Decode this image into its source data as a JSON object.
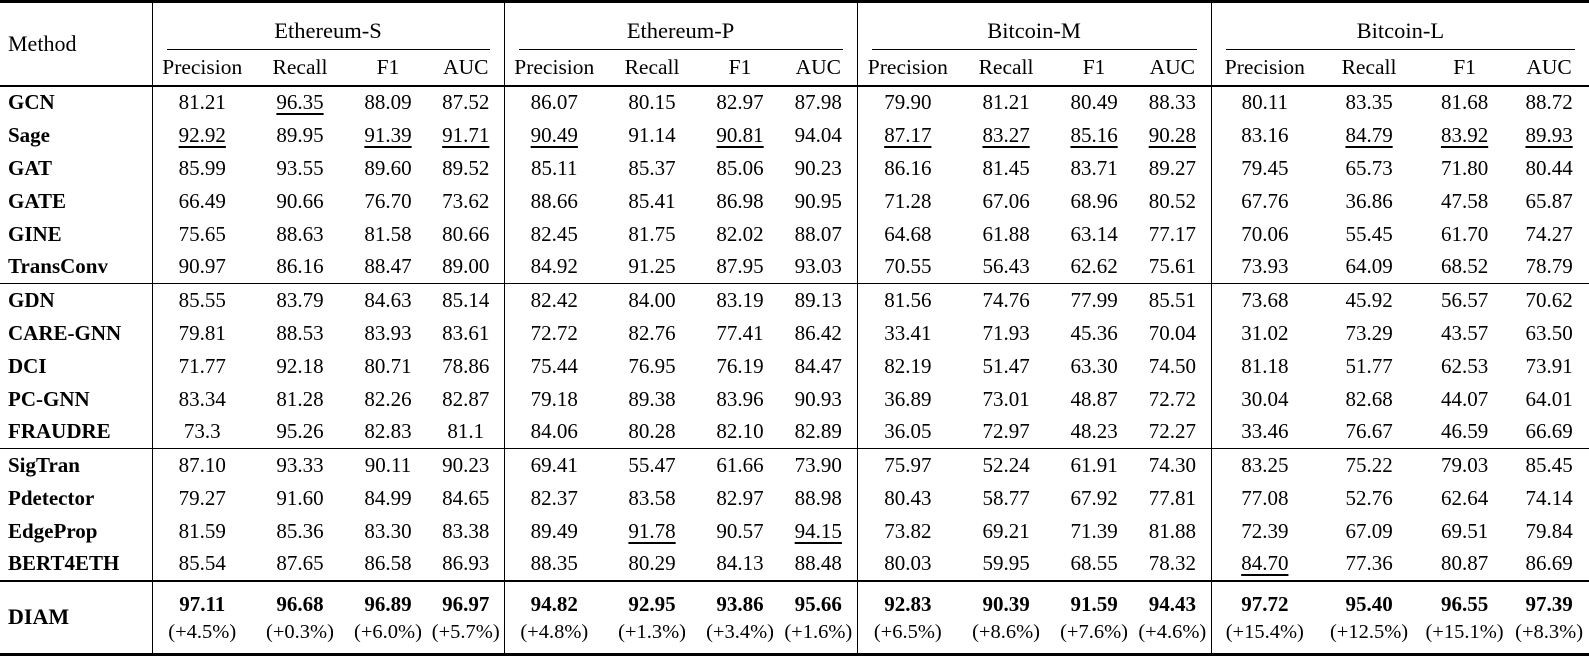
{
  "table": {
    "method_header": "Method",
    "datasets": [
      "Ethereum-S",
      "Ethereum-P",
      "Bitcoin-M",
      "Bitcoin-L"
    ],
    "metrics": [
      "Precision",
      "Recall",
      "F1",
      "AUC"
    ],
    "groups": [
      {
        "rows": [
          {
            "method": "GCN",
            "values": [
              "81.21",
              "96.35",
              "88.09",
              "87.52",
              "86.07",
              "80.15",
              "82.97",
              "87.98",
              "79.90",
              "81.21",
              "80.49",
              "88.33",
              "80.11",
              "83.35",
              "81.68",
              "88.72"
            ],
            "underline": [
              1
            ]
          },
          {
            "method": "Sage",
            "values": [
              "92.92",
              "89.95",
              "91.39",
              "91.71",
              "90.49",
              "91.14",
              "90.81",
              "94.04",
              "87.17",
              "83.27",
              "85.16",
              "90.28",
              "83.16",
              "84.79",
              "83.92",
              "89.93"
            ],
            "underline": [
              0,
              2,
              3,
              4,
              6,
              8,
              9,
              10,
              11,
              13,
              14,
              15
            ]
          },
          {
            "method": "GAT",
            "values": [
              "85.99",
              "93.55",
              "89.60",
              "89.52",
              "85.11",
              "85.37",
              "85.06",
              "90.23",
              "86.16",
              "81.45",
              "83.71",
              "89.27",
              "79.45",
              "65.73",
              "71.80",
              "80.44"
            ],
            "underline": []
          },
          {
            "method": "GATE",
            "values": [
              "66.49",
              "90.66",
              "76.70",
              "73.62",
              "88.66",
              "85.41",
              "86.98",
              "90.95",
              "71.28",
              "67.06",
              "68.96",
              "80.52",
              "67.76",
              "36.86",
              "47.58",
              "65.87"
            ],
            "underline": []
          },
          {
            "method": "GINE",
            "values": [
              "75.65",
              "88.63",
              "81.58",
              "80.66",
              "82.45",
              "81.75",
              "82.02",
              "88.07",
              "64.68",
              "61.88",
              "63.14",
              "77.17",
              "70.06",
              "55.45",
              "61.70",
              "74.27"
            ],
            "underline": []
          },
          {
            "method": "TransConv",
            "values": [
              "90.97",
              "86.16",
              "88.47",
              "89.00",
              "84.92",
              "91.25",
              "87.95",
              "93.03",
              "70.55",
              "56.43",
              "62.62",
              "75.61",
              "73.93",
              "64.09",
              "68.52",
              "78.79"
            ],
            "underline": []
          }
        ]
      },
      {
        "rows": [
          {
            "method": "GDN",
            "values": [
              "85.55",
              "83.79",
              "84.63",
              "85.14",
              "82.42",
              "84.00",
              "83.19",
              "89.13",
              "81.56",
              "74.76",
              "77.99",
              "85.51",
              "73.68",
              "45.92",
              "56.57",
              "70.62"
            ],
            "underline": []
          },
          {
            "method": "CARE-GNN",
            "values": [
              "79.81",
              "88.53",
              "83.93",
              "83.61",
              "72.72",
              "82.76",
              "77.41",
              "86.42",
              "33.41",
              "71.93",
              "45.36",
              "70.04",
              "31.02",
              "73.29",
              "43.57",
              "63.50"
            ],
            "underline": []
          },
          {
            "method": "DCI",
            "values": [
              "71.77",
              "92.18",
              "80.71",
              "78.86",
              "75.44",
              "76.95",
              "76.19",
              "84.47",
              "82.19",
              "51.47",
              "63.30",
              "74.50",
              "81.18",
              "51.77",
              "62.53",
              "73.91"
            ],
            "underline": []
          },
          {
            "method": "PC-GNN",
            "values": [
              "83.34",
              "81.28",
              "82.26",
              "82.87",
              "79.18",
              "89.38",
              "83.96",
              "90.93",
              "36.89",
              "73.01",
              "48.87",
              "72.72",
              "30.04",
              "82.68",
              "44.07",
              "64.01"
            ],
            "underline": []
          },
          {
            "method": "FRAUDRE",
            "values": [
              "73.3",
              "95.26",
              "82.83",
              "81.1",
              "84.06",
              "80.28",
              "82.10",
              "82.89",
              "36.05",
              "72.97",
              "48.23",
              "72.27",
              "33.46",
              "76.67",
              "46.59",
              "66.69"
            ],
            "underline": []
          }
        ]
      },
      {
        "rows": [
          {
            "method": "SigTran",
            "values": [
              "87.10",
              "93.33",
              "90.11",
              "90.23",
              "69.41",
              "55.47",
              "61.66",
              "73.90",
              "75.97",
              "52.24",
              "61.91",
              "74.30",
              "83.25",
              "75.22",
              "79.03",
              "85.45"
            ],
            "underline": []
          },
          {
            "method": "Pdetector",
            "values": [
              "79.27",
              "91.60",
              "84.99",
              "84.65",
              "82.37",
              "83.58",
              "82.97",
              "88.98",
              "80.43",
              "58.77",
              "67.92",
              "77.81",
              "77.08",
              "52.76",
              "62.64",
              "74.14"
            ],
            "underline": []
          },
          {
            "method": "EdgeProp",
            "values": [
              "81.59",
              "85.36",
              "83.30",
              "83.38",
              "89.49",
              "91.78",
              "90.57",
              "94.15",
              "73.82",
              "69.21",
              "71.39",
              "81.88",
              "72.39",
              "67.09",
              "69.51",
              "79.84"
            ],
            "underline": [
              5,
              7
            ]
          },
          {
            "method": "BERT4ETH",
            "values": [
              "85.54",
              "87.65",
              "86.58",
              "86.93",
              "88.35",
              "80.29",
              "84.13",
              "88.48",
              "80.03",
              "59.95",
              "68.55",
              "78.32",
              "84.70",
              "77.36",
              "80.87",
              "86.69"
            ],
            "underline": [
              12
            ]
          }
        ]
      }
    ],
    "diam": {
      "method": "DIAM",
      "values": [
        "97.11",
        "96.68",
        "96.89",
        "96.97",
        "94.82",
        "92.95",
        "93.86",
        "95.66",
        "92.83",
        "90.39",
        "91.59",
        "94.43",
        "97.72",
        "95.40",
        "96.55",
        "97.39"
      ],
      "improvements": [
        "(+4.5%)",
        "(+0.3%)",
        "(+6.0%)",
        "(+5.7%)",
        "(+4.8%)",
        "(+1.3%)",
        "(+3.4%)",
        "(+1.6%)",
        "(+6.5%)",
        "(+8.6%)",
        "(+7.6%)",
        "(+4.6%)",
        "(+15.4%)",
        "(+12.5%)",
        "(+15.1%)",
        "(+8.3%)"
      ]
    }
  }
}
